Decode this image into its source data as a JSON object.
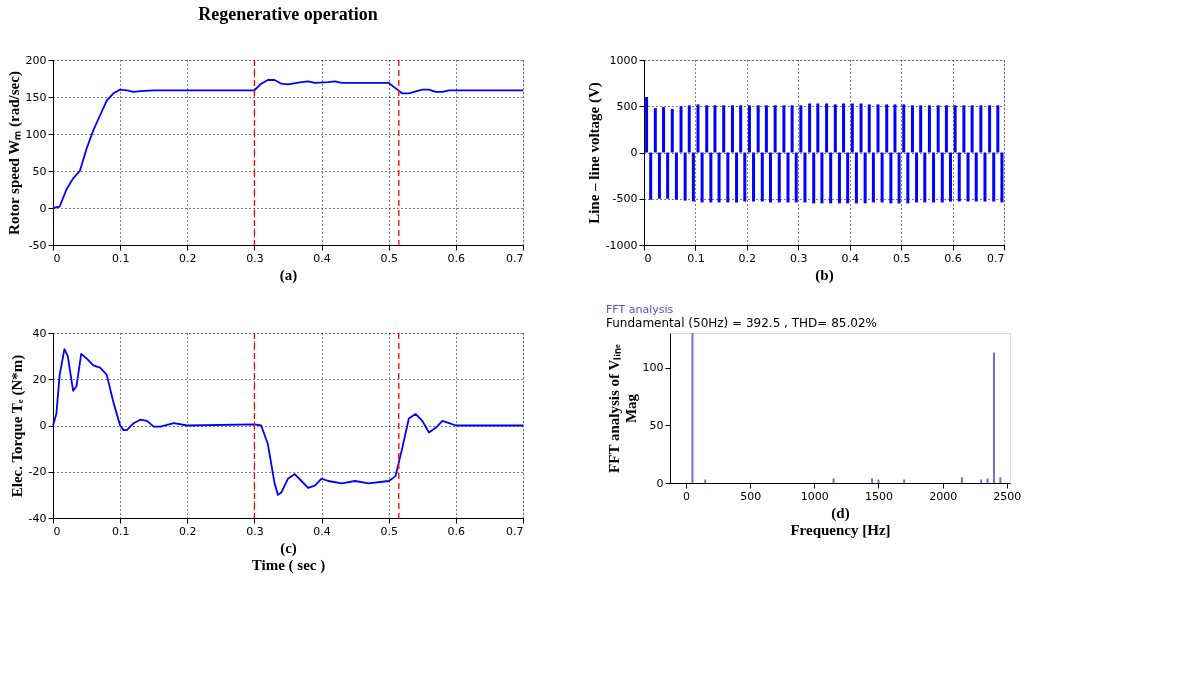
{
  "chart_data": [
    {
      "type": "line",
      "title": "Regenerative operation",
      "ylabel": "Rotor speed  Wₘ (rad/sec)",
      "annotations": [
        "(a)"
      ],
      "x": [
        0,
        0.01,
        0.02,
        0.03,
        0.04,
        0.05,
        0.06,
        0.07,
        0.08,
        0.09,
        0.1,
        0.11,
        0.12,
        0.13,
        0.15,
        0.3,
        0.31,
        0.32,
        0.33,
        0.34,
        0.35,
        0.37,
        0.38,
        0.39,
        0.41,
        0.42,
        0.43,
        0.5,
        0.51,
        0.52,
        0.53,
        0.55,
        0.56,
        0.57,
        0.58,
        0.59,
        0.7
      ],
      "series": [
        {
          "color": "#0000ff",
          "values": [
            0,
            2,
            25,
            40,
            50,
            80,
            105,
            125,
            145,
            155,
            160,
            159,
            157,
            158,
            159,
            159,
            168,
            173,
            173,
            168,
            167,
            170,
            171,
            169,
            170,
            171,
            169,
            169,
            162,
            155,
            155,
            160,
            160,
            157,
            157,
            159,
            159
          ]
        }
      ],
      "xlim": [
        0,
        0.7
      ],
      "xticks": [
        0,
        0.1,
        0.2,
        0.3,
        0.4,
        0.5,
        0.6,
        0.7
      ],
      "ylim": [
        -50,
        200
      ],
      "yticks": [
        -50,
        0,
        50,
        100,
        150,
        200
      ],
      "grid": true,
      "ref_lines": [
        {
          "axis": "x",
          "value": 0.3,
          "color": "#ff0000",
          "line_style": "dashed"
        },
        {
          "axis": "x",
          "value": 0.515,
          "color": "#ff0000",
          "line_style": "dashed"
        }
      ]
    },
    {
      "type": "bar",
      "ylabel": "Line – line voltage (V)",
      "annotations": [
        "(b)"
      ],
      "series": [
        {
          "color": "#0000ff",
          "x": [
            0.005,
            0.022,
            0.038,
            0.055,
            0.072,
            0.088,
            0.105,
            0.122,
            0.138,
            0.155,
            0.172,
            0.188,
            0.205,
            0.222,
            0.238,
            0.255,
            0.272,
            0.288,
            0.305,
            0.322,
            0.338,
            0.355,
            0.372,
            0.388,
            0.405,
            0.422,
            0.438,
            0.455,
            0.472,
            0.488,
            0.505,
            0.522,
            0.538,
            0.555,
            0.572,
            0.588,
            0.605,
            0.622,
            0.638,
            0.655,
            0.672,
            0.688
          ],
          "values": [
            600,
            480,
            490,
            470,
            500,
            510,
            520,
            510,
            510,
            510,
            510,
            510,
            510,
            510,
            510,
            510,
            510,
            510,
            510,
            530,
            530,
            530,
            520,
            530,
            530,
            530,
            520,
            520,
            520,
            520,
            520,
            510,
            510,
            510,
            510,
            510,
            510,
            510,
            510,
            510,
            510,
            510
          ]
        },
        {
          "color": "#0000ff",
          "x": [
            0.013,
            0.03,
            0.046,
            0.063,
            0.08,
            0.096,
            0.113,
            0.13,
            0.146,
            0.163,
            0.18,
            0.196,
            0.213,
            0.23,
            0.246,
            0.263,
            0.28,
            0.296,
            0.313,
            0.33,
            0.346,
            0.363,
            0.38,
            0.396,
            0.413,
            0.43,
            0.446,
            0.463,
            0.48,
            0.496,
            0.513,
            0.53,
            0.546,
            0.563,
            0.58,
            0.596,
            0.613,
            0.63,
            0.646,
            0.663,
            0.68,
            0.696
          ],
          "values": [
            -510,
            -500,
            -500,
            -510,
            -520,
            -530,
            -540,
            -540,
            -540,
            -540,
            -540,
            -530,
            -530,
            -530,
            -540,
            -540,
            -540,
            -540,
            -540,
            -550,
            -550,
            -550,
            -550,
            -550,
            -550,
            -550,
            -540,
            -540,
            -550,
            -550,
            -550,
            -540,
            -540,
            -540,
            -540,
            -530,
            -530,
            -530,
            -530,
            -530,
            -530,
            -540
          ]
        }
      ],
      "xlim": [
        0,
        0.7
      ],
      "xticks": [
        0,
        0.1,
        0.2,
        0.3,
        0.4,
        0.5,
        0.6,
        0.7
      ],
      "ylim": [
        -1000,
        1000
      ],
      "yticks": [
        -1000,
        -500,
        0,
        500,
        1000
      ],
      "grid": true
    },
    {
      "type": "line",
      "ylabel": "Elec. Torque  Tₑ (N*m)",
      "xlabel": "Time ( sec )",
      "annotations": [
        "(c)"
      ],
      "x": [
        0,
        0.005,
        0.01,
        0.017,
        0.022,
        0.03,
        0.035,
        0.042,
        0.05,
        0.06,
        0.07,
        0.08,
        0.09,
        0.1,
        0.105,
        0.11,
        0.12,
        0.13,
        0.14,
        0.15,
        0.16,
        0.18,
        0.2,
        0.3,
        0.31,
        0.32,
        0.33,
        0.335,
        0.34,
        0.35,
        0.36,
        0.37,
        0.38,
        0.39,
        0.4,
        0.41,
        0.43,
        0.45,
        0.47,
        0.5,
        0.51,
        0.52,
        0.53,
        0.54,
        0.55,
        0.56,
        0.57,
        0.58,
        0.59,
        0.6,
        0.7
      ],
      "series": [
        {
          "color": "#0000ff",
          "values": [
            0,
            5,
            22,
            33,
            30,
            15,
            17,
            31,
            29,
            26,
            25,
            22,
            10,
            0,
            -2,
            -2,
            1,
            2.5,
            2,
            -0.5,
            -0.5,
            1,
            0,
            0.5,
            0,
            -8,
            -25,
            -30,
            -29,
            -23,
            -21,
            -24,
            -27,
            -26,
            -23,
            -24,
            -25,
            -24,
            -25,
            -24,
            -22,
            -10,
            3,
            5,
            2,
            -3,
            -1,
            2,
            1,
            0,
            0
          ]
        }
      ],
      "xlim": [
        0,
        0.7
      ],
      "xticks": [
        0,
        0.1,
        0.2,
        0.3,
        0.4,
        0.5,
        0.6,
        0.7
      ],
      "ylim": [
        -40,
        40
      ],
      "yticks": [
        -40,
        -20,
        0,
        20,
        40
      ],
      "grid": true,
      "ref_lines": [
        {
          "axis": "x",
          "value": 0.3,
          "color": "#ff0000",
          "line_style": "dashed"
        },
        {
          "axis": "x",
          "value": 0.515,
          "color": "#ff0000",
          "line_style": "dashed"
        }
      ]
    },
    {
      "type": "bar",
      "title": "FFT analysis",
      "subtitle": "Fundamental (50Hz) = 392.5 , THD= 85.02%",
      "ylabel": "Mag",
      "xlabel": "Frequency [Hz]",
      "annotations": [
        "(d)",
        "FFT analysis of Vₗᵢₙₑ"
      ],
      "series": [
        {
          "color": "#6f6fd0",
          "x": [
            50,
            150,
            1150,
            1450,
            1500,
            1700,
            2150,
            2300,
            2350,
            2400,
            2450
          ],
          "values": [
            130,
            3,
            4,
            4,
            3,
            3,
            5,
            3,
            4,
            113,
            5
          ]
        }
      ],
      "xlim": [
        -125,
        2525
      ],
      "xticks": [
        0,
        500,
        1000,
        1500,
        2000,
        2500
      ],
      "ylim": [
        0,
        130
      ],
      "yticks": [
        0,
        50,
        100
      ],
      "grid": false
    }
  ]
}
